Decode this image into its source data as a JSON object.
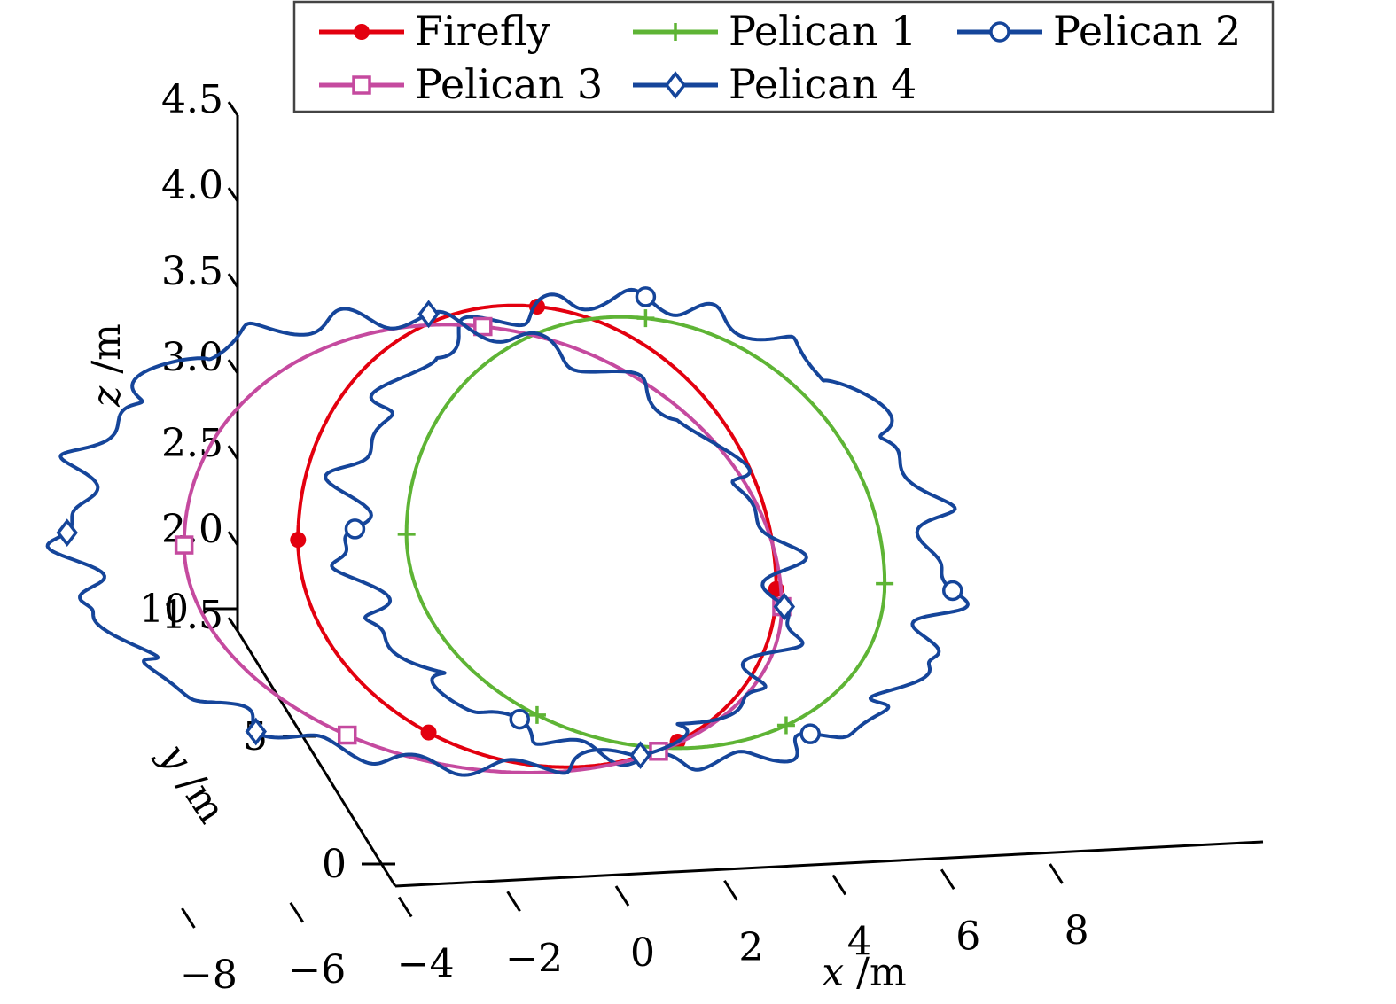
{
  "chart_data": {
    "type": "line",
    "projection": "3d",
    "title": "",
    "xlabel": {
      "var": "x",
      "unit": " /m"
    },
    "ylabel": {
      "var": "y",
      "unit": " /m"
    },
    "zlabel": {
      "var": "z",
      "unit": " /m"
    },
    "xlim": [
      -8,
      8
    ],
    "ylim": [
      0,
      10
    ],
    "zlim": [
      1.5,
      4.5
    ],
    "x_ticks": [
      "−8",
      "−6",
      "−4",
      "−2",
      "0",
      "2",
      "4",
      "6",
      "8"
    ],
    "y_ticks": [
      "0",
      "5",
      "10"
    ],
    "z_ticks": [
      "1.5",
      "2.0",
      "2.5",
      "3.0",
      "3.5",
      "4.0",
      "4.5"
    ],
    "grid": false,
    "legend_position": "top",
    "series": [
      {
        "name": "Firefly",
        "color": "#e3000f",
        "marker": "dot",
        "center": [
          0,
          5
        ],
        "radius": 4,
        "z_mid": 2.5,
        "z_amp": 1.5,
        "noise": 0.0
      },
      {
        "name": "Pelican 1",
        "color": "#5eb435",
        "marker": "plus",
        "center": [
          2,
          5
        ],
        "radius": 4,
        "z_mid": 2.5,
        "z_amp": 1.4,
        "noise": 0.0
      },
      {
        "name": "Pelican 2",
        "color": "#15459a",
        "marker": "circle",
        "center": [
          2,
          5
        ],
        "radius": 5,
        "z_mid": 2.5,
        "z_amp": 1.5,
        "noise": 0.06
      },
      {
        "name": "Pelican 3",
        "color": "#c54a9f",
        "marker": "square",
        "center": [
          -1,
          5
        ],
        "radius": 5,
        "z_mid": 2.45,
        "z_amp": 1.45,
        "noise": 0.0
      },
      {
        "name": "Pelican 4",
        "color": "#15459a",
        "marker": "diamond",
        "center": [
          -2,
          5
        ],
        "radius": 6,
        "z_mid": 2.5,
        "z_amp": 1.45,
        "noise": 0.06
      }
    ]
  }
}
